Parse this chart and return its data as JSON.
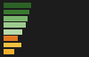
{
  "bars": [
    {
      "value": 55,
      "color": "#2d6227"
    },
    {
      "value": 52,
      "color": "#3a7a2e"
    },
    {
      "value": 48,
      "color": "#7ab56e"
    },
    {
      "value": 44,
      "color": "#9dca8e"
    },
    {
      "value": 38,
      "color": "#b8d9a8"
    },
    {
      "value": 28,
      "color": "#e07820"
    },
    {
      "value": 36,
      "color": "#f5c040"
    },
    {
      "value": 22,
      "color": "#f0b030"
    }
  ],
  "xlim": [
    0,
    100
  ],
  "background_color": "#1c1c1c"
}
